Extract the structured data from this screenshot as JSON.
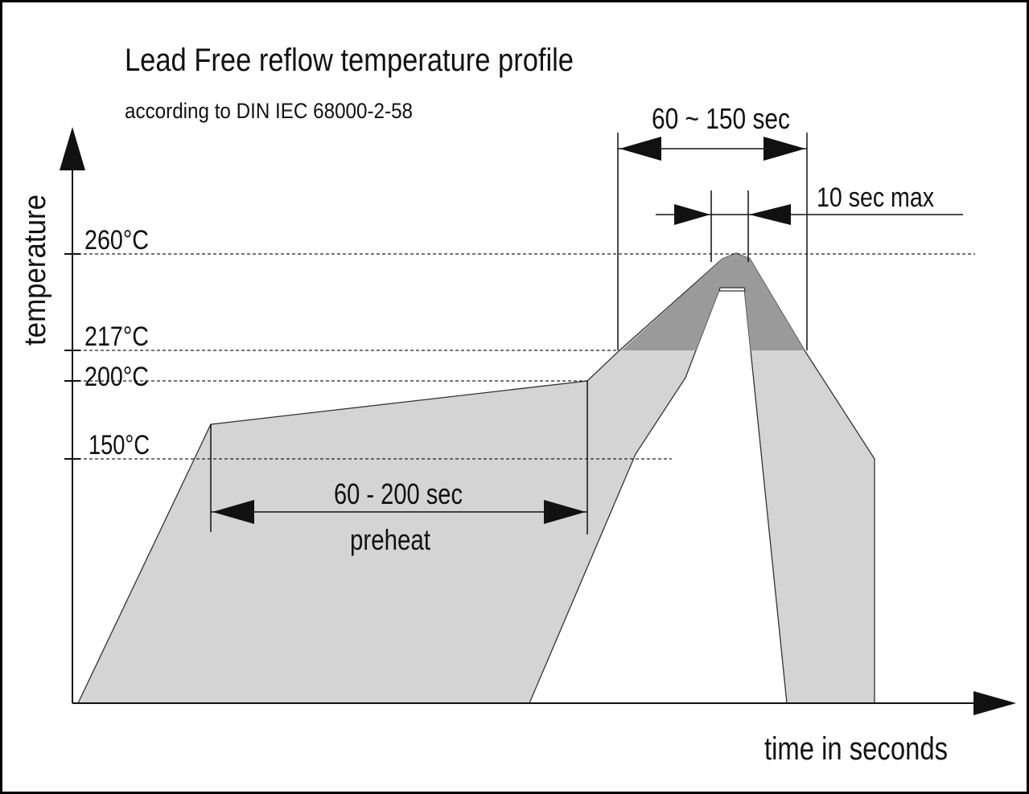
{
  "title": "Lead Free reflow temperature profile",
  "subtitle": "according to DIN IEC 68000-2-58",
  "axes": {
    "y_label": "temperature",
    "x_label": "time in seconds"
  },
  "temperature_levels": [
    "260°C",
    "217°C",
    "200°C",
    "150°C"
  ],
  "annotations": {
    "reflow_window": "60 ~ 150 sec",
    "peak_window": "10 sec max",
    "preheat_window": "60 - 200 sec",
    "preheat_label": "preheat"
  }
}
